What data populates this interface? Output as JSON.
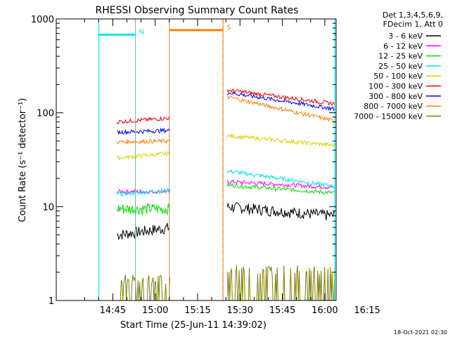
{
  "chart_data": {
    "type": "line",
    "title": "RHESSI Observing Summary Count Rates",
    "xlabel": "Start Time (25-Jun-11 14:39:02)",
    "ylabel": "Count Rate (s⁻¹ detector⁻¹)",
    "yscale": "log",
    "ylim": [
      1,
      1000
    ],
    "y_ticks": [
      "1",
      "10",
      "100",
      "1000"
    ],
    "xlim_minutes": [
      -20,
      79
    ],
    "x_ticks": [
      {
        "label": "14:45",
        "min": 0
      },
      {
        "label": "15:00",
        "min": 15
      },
      {
        "label": "15:15",
        "min": 30
      },
      {
        "label": "15:30",
        "min": 45
      },
      {
        "label": "15:45",
        "min": 60
      },
      {
        "label": "16:00",
        "min": 75
      },
      {
        "label": "16:15",
        "min": 90
      }
    ],
    "legend_header": [
      "Det 1,3,4,5,6,9,",
      "FDecim 1, Att 0"
    ],
    "legend_position": "right",
    "footer_date": "18-Oct-2021 02:30",
    "flags": [
      {
        "label": "N",
        "color": "#00e5e5",
        "bar_level": 680,
        "solid_min": [
          -5,
          8
        ],
        "dashed_min": [
          8
        ]
      },
      {
        "label": "S",
        "color": "#ff7f00",
        "bar_level": 760,
        "solid_min": [
          20,
          39
        ],
        "dashed_min": [
          39
        ]
      },
      {
        "label": "",
        "color": "#00e5e5",
        "bar_level": 680,
        "solid_min": [
          78.5,
          88
        ],
        "dashed_min": [
          88
        ]
      }
    ],
    "segments": [
      [
        1.5,
        20.2
      ],
      [
        40.5,
        78.5
      ]
    ],
    "series": [
      {
        "name": "3 - 6 keV",
        "color": "#000000",
        "values": [
          [
            5,
            6
          ],
          [
            10,
            8
          ]
        ]
      },
      {
        "name": "6 - 12 keV",
        "color": "#ff00ff",
        "values": [
          [
            14.5,
            14.5
          ],
          [
            18.5,
            16
          ]
        ]
      },
      {
        "name": "12 - 25 keV",
        "color": "#00dd00",
        "values": [
          [
            9.5,
            9.5
          ],
          [
            17,
            14
          ]
        ]
      },
      {
        "name": "25 - 50 keV",
        "color": "#00e5e5",
        "values": [
          [
            13.5,
            15
          ],
          [
            24,
            16.5
          ]
        ]
      },
      {
        "name": "50 - 100 keV",
        "color": "#d4d400",
        "values": [
          [
            33,
            37
          ],
          [
            57,
            45
          ]
        ]
      },
      {
        "name": "100 - 300 keV",
        "color": "#ee0000",
        "values": [
          [
            80,
            88
          ],
          [
            175,
            125
          ]
        ]
      },
      {
        "name": "300 - 800 keV",
        "color": "#0000ee",
        "values": [
          [
            62,
            65
          ],
          [
            165,
            110
          ]
        ]
      },
      {
        "name": "800 - 7000 keV",
        "color": "#ff7f00",
        "values": [
          [
            49,
            50
          ],
          [
            148,
            82
          ]
        ]
      },
      {
        "name": "7000 - 15000 keV",
        "color": "#808000",
        "values": [
          [
            1.5,
            1.5
          ],
          [
            1.9,
            1.9
          ]
        ]
      }
    ]
  }
}
